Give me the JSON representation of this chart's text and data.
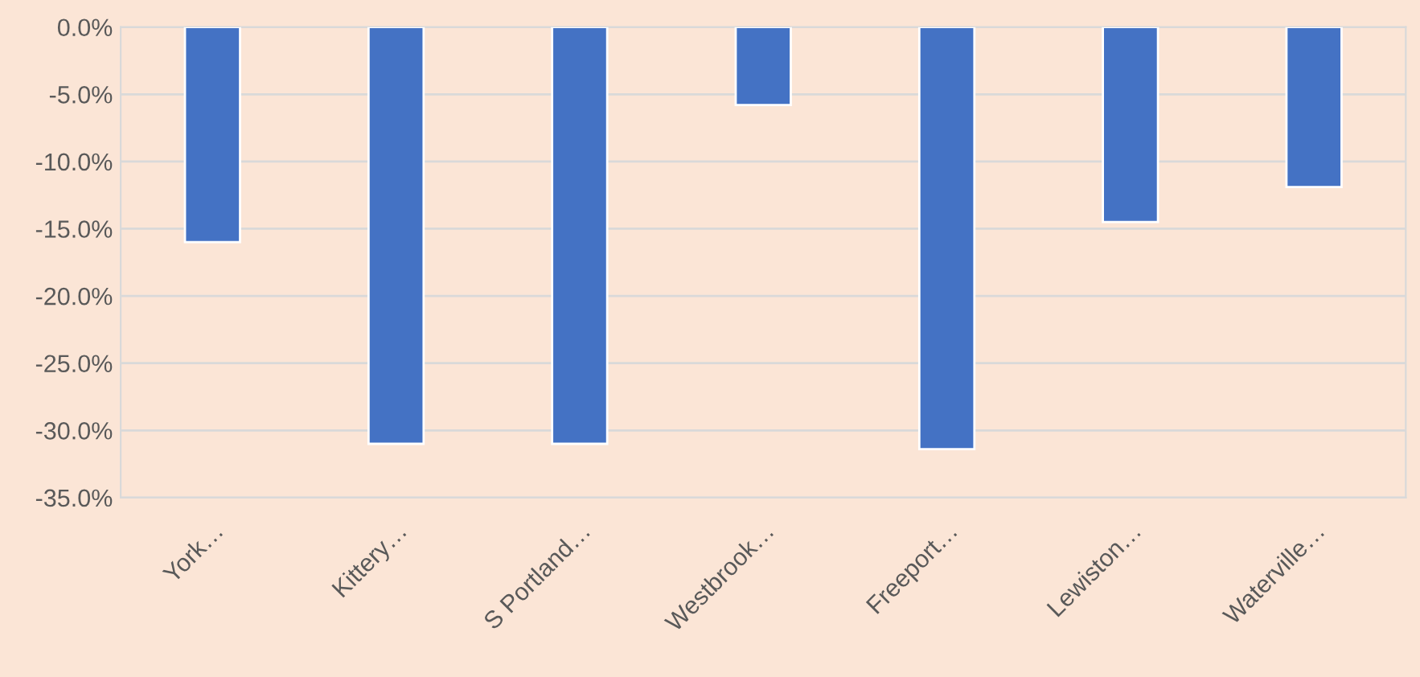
{
  "chart_data": {
    "type": "bar",
    "categories": [
      "York…",
      "Kittery…",
      "S Portland…",
      "Westbrook…",
      "Freeport…",
      "Lewiston…",
      "Waterville…"
    ],
    "values": [
      -16.0,
      -31.0,
      -31.0,
      -5.8,
      -31.4,
      -14.5,
      -11.9
    ],
    "color": "#4472c4",
    "ylim": [
      -35,
      0
    ],
    "yticks": [
      {
        "value": -35,
        "label": "-35.0%"
      },
      {
        "value": -30,
        "label": "-30.0%"
      },
      {
        "value": -25,
        "label": "-25.0%"
      },
      {
        "value": -20,
        "label": "-20.0%"
      },
      {
        "value": -15,
        "label": "-15.0%"
      },
      {
        "value": -10,
        "label": "-10.0%"
      },
      {
        "value": -5,
        "label": "-5.0%"
      },
      {
        "value": 0,
        "label": "0.0%"
      }
    ],
    "grid": "y"
  }
}
